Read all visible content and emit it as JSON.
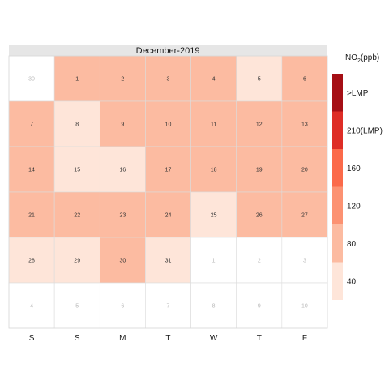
{
  "chart_data": {
    "type": "heatmap",
    "title": "December-2019",
    "weekday_labels": [
      "S",
      "S",
      "M",
      "T",
      "W",
      "T",
      "F"
    ],
    "legend": {
      "title_main": "NO",
      "title_sub": "2",
      "title_unit": "(ppb)",
      "bands": [
        {
          "color": "#fee5d9",
          "label": "40"
        },
        {
          "color": "#fcbba1",
          "label": "80"
        },
        {
          "color": "#fc9272",
          "label": "120"
        },
        {
          "color": "#fb6a4a",
          "label": "160"
        },
        {
          "color": "#de2d26",
          "label": "210(LMP)"
        },
        {
          "color": "#a50f15",
          "label": ">LMP"
        }
      ]
    },
    "cells": [
      {
        "label": "30",
        "month": "prev",
        "band": null
      },
      {
        "label": "1",
        "month": "current",
        "band": 1
      },
      {
        "label": "2",
        "month": "current",
        "band": 1
      },
      {
        "label": "3",
        "month": "current",
        "band": 1
      },
      {
        "label": "4",
        "month": "current",
        "band": 1
      },
      {
        "label": "5",
        "month": "current",
        "band": 0
      },
      {
        "label": "6",
        "month": "current",
        "band": 1
      },
      {
        "label": "7",
        "month": "current",
        "band": 1
      },
      {
        "label": "8",
        "month": "current",
        "band": 0
      },
      {
        "label": "9",
        "month": "current",
        "band": 1
      },
      {
        "label": "10",
        "month": "current",
        "band": 1
      },
      {
        "label": "11",
        "month": "current",
        "band": 1
      },
      {
        "label": "12",
        "month": "current",
        "band": 1
      },
      {
        "label": "13",
        "month": "current",
        "band": 1
      },
      {
        "label": "14",
        "month": "current",
        "band": 1
      },
      {
        "label": "15",
        "month": "current",
        "band": 0
      },
      {
        "label": "16",
        "month": "current",
        "band": 0
      },
      {
        "label": "17",
        "month": "current",
        "band": 1
      },
      {
        "label": "18",
        "month": "current",
        "band": 1
      },
      {
        "label": "19",
        "month": "current",
        "band": 1
      },
      {
        "label": "20",
        "month": "current",
        "band": 1
      },
      {
        "label": "21",
        "month": "current",
        "band": 1
      },
      {
        "label": "22",
        "month": "current",
        "band": 1
      },
      {
        "label": "23",
        "month": "current",
        "band": 1
      },
      {
        "label": "24",
        "month": "current",
        "band": 1
      },
      {
        "label": "25",
        "month": "current",
        "band": 0
      },
      {
        "label": "26",
        "month": "current",
        "band": 1
      },
      {
        "label": "27",
        "month": "current",
        "band": 1
      },
      {
        "label": "28",
        "month": "current",
        "band": 0
      },
      {
        "label": "29",
        "month": "current",
        "band": 0
      },
      {
        "label": "30",
        "month": "current",
        "band": 1
      },
      {
        "label": "31",
        "month": "current",
        "band": 0
      },
      {
        "label": "1",
        "month": "next",
        "band": null
      },
      {
        "label": "2",
        "month": "next",
        "band": null
      },
      {
        "label": "3",
        "month": "next",
        "band": null
      },
      {
        "label": "4",
        "month": "next",
        "band": null
      },
      {
        "label": "5",
        "month": "next",
        "band": null
      },
      {
        "label": "6",
        "month": "next",
        "band": null
      },
      {
        "label": "7",
        "month": "next",
        "band": null
      },
      {
        "label": "8",
        "month": "next",
        "band": null
      },
      {
        "label": "9",
        "month": "next",
        "band": null
      },
      {
        "label": "10",
        "month": "next",
        "band": null
      }
    ]
  }
}
